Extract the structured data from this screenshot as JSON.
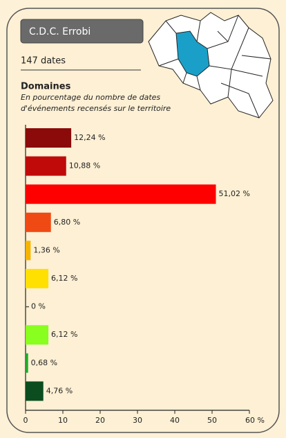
{
  "chart_data": {
    "type": "hbar",
    "territory": "C.D.C. Errobi",
    "count_label": "147 dates",
    "title": "Domaines",
    "subtitle": [
      "En pourcentage du nombre de dates",
      "d'événements recensés sur le territoire"
    ],
    "values": [
      12.24,
      10.88,
      51.02,
      6.8,
      1.36,
      6.12,
      0,
      6.12,
      0.68,
      4.76
    ],
    "value_labels": [
      "12,24 %",
      "10,88 %",
      "51,02 %",
      "6,80  %",
      "1,36 %",
      "6,12 %",
      "0 %",
      "6,12  %",
      "0,68 %",
      "4,76 %"
    ],
    "colors": [
      "#8b0a0a",
      "#c00a0a",
      "#ff0000",
      "#f04a14",
      "#f5b400",
      "#ffe000",
      "#555555",
      "#88ff1e",
      "#1faa2a",
      "#0b4d1e"
    ],
    "xlim": [
      0,
      60
    ],
    "xticks": [
      0,
      10,
      20,
      30,
      40,
      50,
      {
        "value": 60,
        "label": "60 %"
      }
    ]
  }
}
